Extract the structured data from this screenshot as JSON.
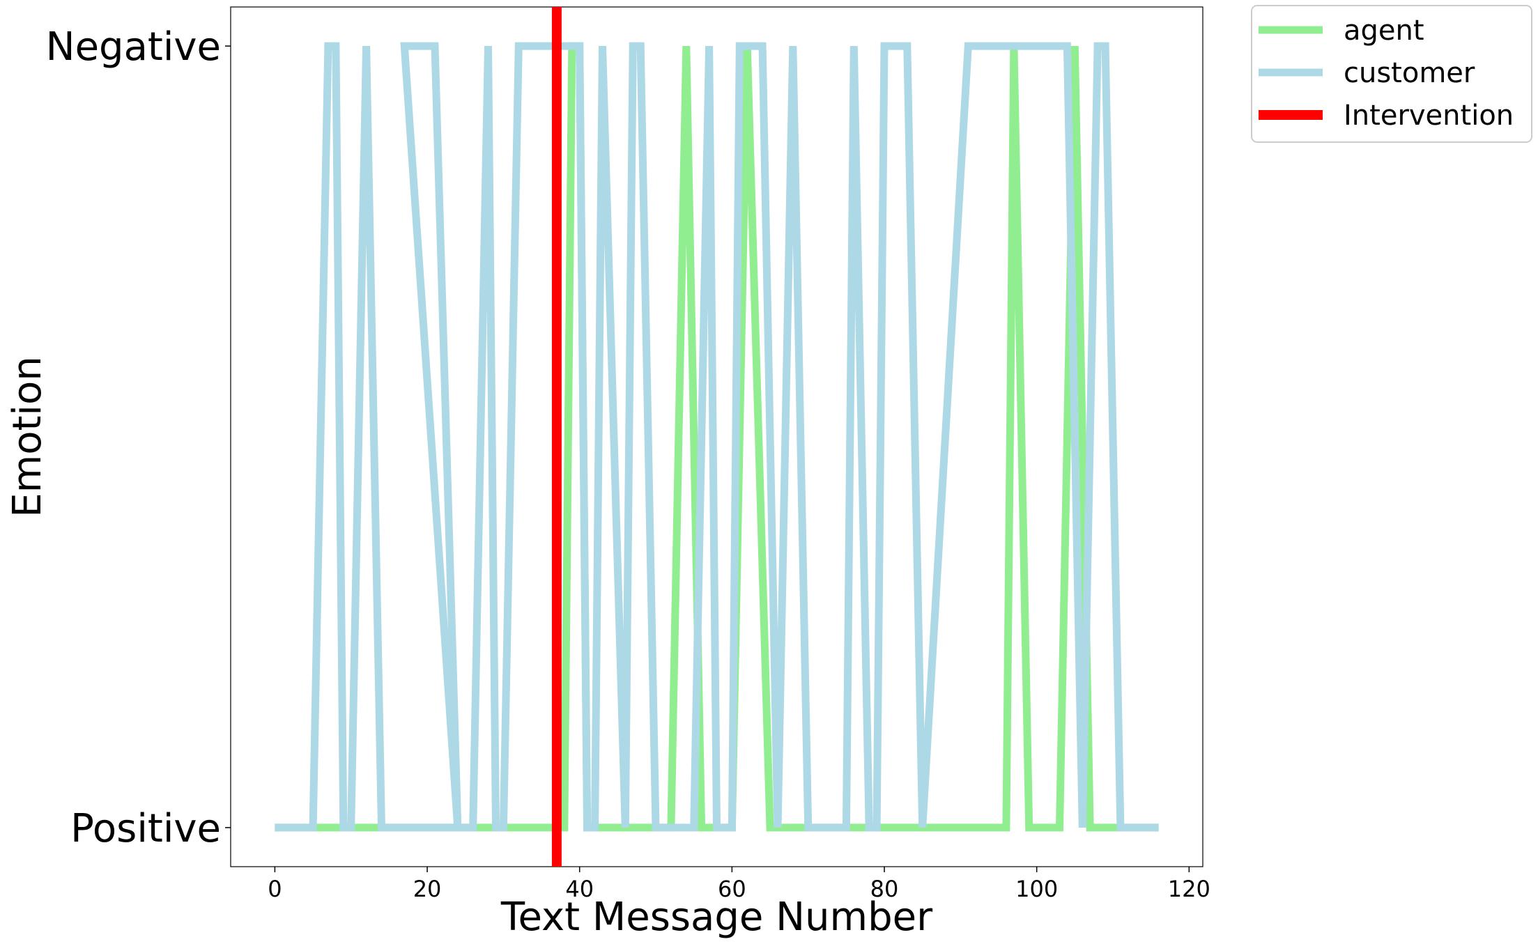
{
  "chart_data": {
    "type": "line",
    "title": "",
    "xlabel": "Text Message Number",
    "ylabel": "Emotion",
    "xlim": [
      -5.8,
      121.8
    ],
    "ylim": [
      -0.05,
      1.05
    ],
    "x_ticks": [
      0,
      20,
      40,
      60,
      80,
      100,
      120
    ],
    "y_ticks": [
      {
        "value": 0,
        "label": "Positive"
      },
      {
        "value": 1,
        "label": "Negative"
      }
    ],
    "grid": false,
    "legend": {
      "placement": "outside-top-right"
    },
    "series": [
      {
        "name": "agent",
        "color": "#90ee90",
        "points": [
          [
            0,
            0
          ],
          [
            38,
            0
          ],
          [
            39,
            1
          ],
          [
            40,
            1
          ],
          [
            41,
            0
          ],
          [
            52,
            0
          ],
          [
            54,
            1
          ],
          [
            56,
            0
          ],
          [
            59,
            0
          ],
          [
            60,
            0
          ],
          [
            62,
            1
          ],
          [
            65,
            0
          ],
          [
            96,
            0
          ],
          [
            97,
            1
          ],
          [
            99,
            0
          ],
          [
            103,
            0
          ],
          [
            105,
            1
          ],
          [
            107,
            0
          ],
          [
            116,
            0
          ]
        ]
      },
      {
        "name": "customer",
        "color": "#add8e6",
        "points": [
          [
            0,
            0
          ],
          [
            5,
            0
          ],
          [
            7,
            1
          ],
          [
            8,
            1
          ],
          [
            9,
            0
          ],
          [
            10,
            0
          ],
          [
            12,
            1
          ],
          [
            14,
            0
          ],
          [
            24,
            0
          ],
          [
            17,
            1
          ],
          [
            21,
            1
          ],
          [
            24,
            0
          ],
          [
            26,
            0
          ],
          [
            28,
            1
          ],
          [
            29,
            0
          ],
          [
            30,
            0
          ],
          [
            32,
            1
          ],
          [
            40,
            1
          ],
          [
            41,
            0
          ],
          [
            42,
            0
          ],
          [
            43,
            1
          ],
          [
            46,
            0
          ],
          [
            47,
            1
          ],
          [
            48,
            1
          ],
          [
            50,
            0
          ],
          [
            55,
            0
          ],
          [
            57,
            1
          ],
          [
            58,
            0
          ],
          [
            60,
            0
          ],
          [
            61,
            1
          ],
          [
            64,
            1
          ],
          [
            66,
            0
          ],
          [
            68,
            1
          ],
          [
            70,
            0
          ],
          [
            75,
            0
          ],
          [
            76,
            1
          ],
          [
            78,
            0
          ],
          [
            79,
            0
          ],
          [
            80,
            1
          ],
          [
            83,
            1
          ],
          [
            85,
            0
          ],
          [
            91,
            1
          ],
          [
            104,
            1
          ],
          [
            106,
            0
          ],
          [
            108,
            1
          ],
          [
            109,
            1
          ],
          [
            111,
            0
          ],
          [
            116,
            0
          ]
        ]
      }
    ],
    "intervention": {
      "name": "Intervention",
      "x": 37,
      "color": "#ff0000"
    }
  }
}
